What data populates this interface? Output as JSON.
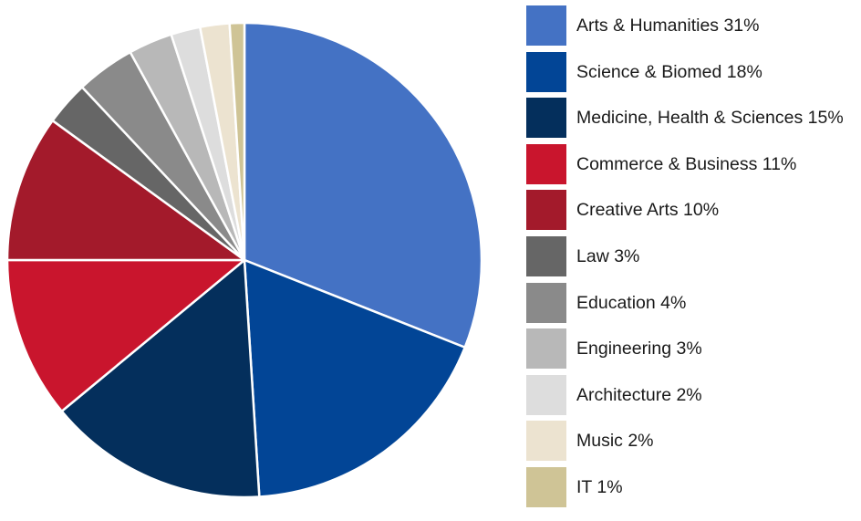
{
  "chart_data": {
    "type": "pie",
    "title": "",
    "legend_position": "right",
    "slices": [
      {
        "label": "Arts & Humanities 31%",
        "name": "Arts & Humanities",
        "value": 31,
        "color": "#4472C4"
      },
      {
        "label": "Science & Biomed 18%",
        "name": "Science & Biomed",
        "value": 18,
        "color": "#024596"
      },
      {
        "label": "Medicine, Health & Sciences 15%",
        "name": "Medicine, Health & Sciences",
        "value": 15,
        "color": "#042F5C"
      },
      {
        "label": "Commerce & Business 11%",
        "name": "Commerce & Business",
        "value": 11,
        "color": "#C9152D"
      },
      {
        "label": "Creative Arts 10%",
        "name": "Creative Arts",
        "value": 10,
        "color": "#A31A2B"
      },
      {
        "label": "Law 3%",
        "name": "Law",
        "value": 3,
        "color": "#666666"
      },
      {
        "label": "Education 4%",
        "name": "Education",
        "value": 4,
        "color": "#8A8A8A"
      },
      {
        "label": "Engineering 3%",
        "name": "Engineering",
        "value": 3,
        "color": "#B8B8B8"
      },
      {
        "label": "Architecture 2%",
        "name": "Architecture",
        "value": 2,
        "color": "#DDDDDD"
      },
      {
        "label": "Music 2%",
        "name": "Music",
        "value": 2,
        "color": "#ECE3D0"
      },
      {
        "label": "IT 1%",
        "name": "IT",
        "value": 1,
        "color": "#CFC496"
      }
    ]
  }
}
